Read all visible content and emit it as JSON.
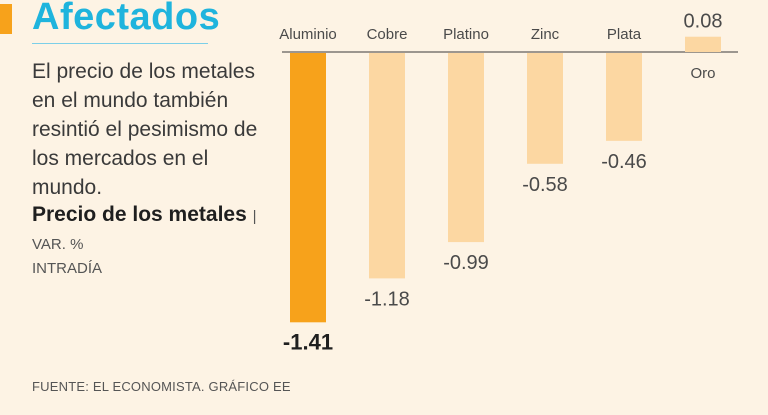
{
  "header": {
    "title": "Afectados",
    "description": "El precio de los metales en el mundo también resintió el pesimismo de los mercados en el mundo.",
    "subtitle_bold": "Precio de los metales",
    "subtitle_unit": "| VAR. %",
    "subtitle_unit2": "INTRADÍA"
  },
  "footer": {
    "source": "FUENTE: EL ECONOMISTA. GRÁFICO EE"
  },
  "colors": {
    "highlight": "#f7a21b",
    "bar": "#fcd7a2",
    "title": "#1fb4dd",
    "background": "#fdf3e4"
  },
  "chart_data": {
    "type": "bar",
    "categories": [
      "Aluminio",
      "Cobre",
      "Platino",
      "Zinc",
      "Plata",
      "Oro"
    ],
    "values": [
      -1.41,
      -1.18,
      -0.99,
      -0.58,
      -0.46,
      0.08
    ],
    "value_labels": [
      "-1.41",
      "-1.18",
      "-0.99",
      "-0.58",
      "-0.46",
      "0.08"
    ],
    "highlight_index": 0,
    "ylim": [
      -1.41,
      0.08
    ],
    "title": "",
    "xlabel": "",
    "ylabel": ""
  }
}
